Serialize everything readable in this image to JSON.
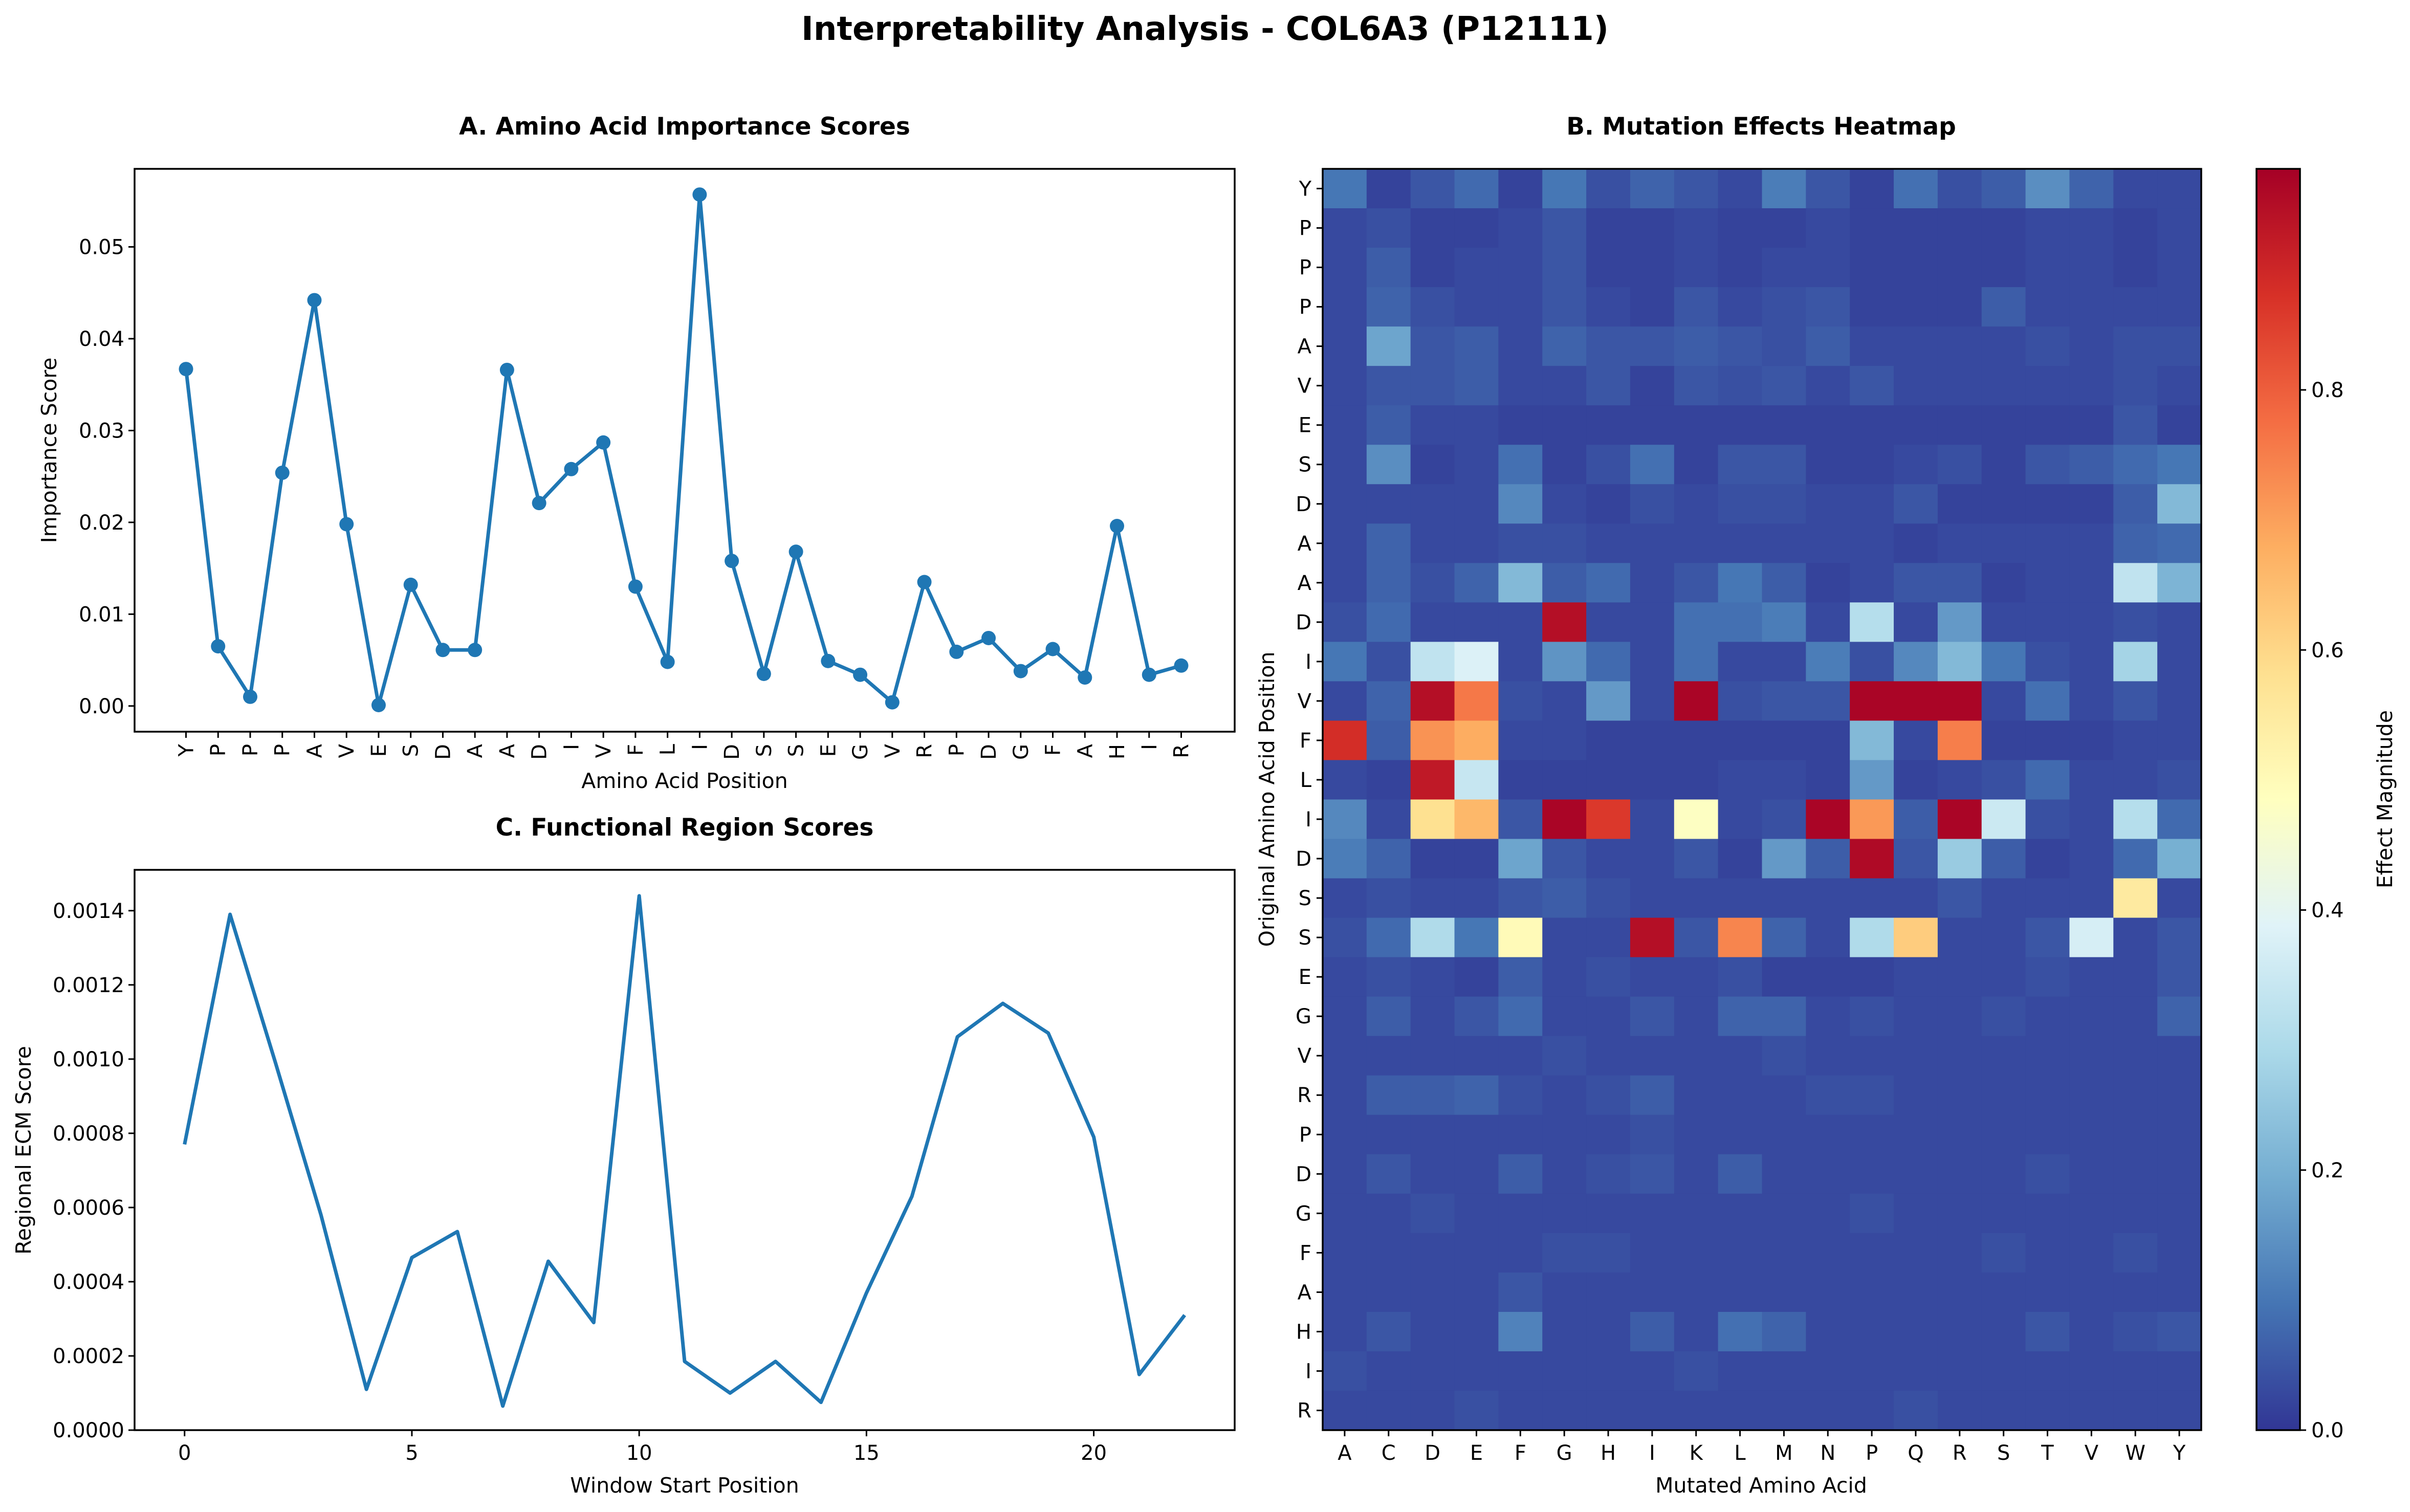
{
  "suptitle": "Interpretability Analysis - COL6A3 (P12111)",
  "chart_data": [
    {
      "panel": "A",
      "type": "line",
      "title": "A. Amino Acid Importance Scores",
      "xlabel": "Amino Acid Position",
      "ylabel": "Importance Score",
      "markers": true,
      "categories": [
        "Y",
        "P",
        "P",
        "P",
        "A",
        "V",
        "E",
        "S",
        "D",
        "A",
        "A",
        "D",
        "I",
        "V",
        "F",
        "L",
        "I",
        "D",
        "S",
        "S",
        "E",
        "G",
        "V",
        "R",
        "P",
        "D",
        "G",
        "F",
        "A",
        "H",
        "I",
        "R"
      ],
      "values": [
        0.0367,
        0.0065,
        0.001,
        0.0254,
        0.0442,
        0.0198,
        0.0001,
        0.0132,
        0.0061,
        0.0061,
        0.0366,
        0.0221,
        0.0258,
        0.0287,
        0.013,
        0.0048,
        0.0557,
        0.0158,
        0.0035,
        0.0168,
        0.0049,
        0.0034,
        0.0004,
        0.0135,
        0.0059,
        0.0074,
        0.0038,
        0.0062,
        0.0031,
        0.0196,
        0.0034,
        0.0044
      ],
      "yticks": [
        "0.00",
        "0.01",
        "0.02",
        "0.03",
        "0.04",
        "0.05"
      ],
      "ylim": [
        -0.0028,
        0.0585
      ],
      "color": "#1f77b4"
    },
    {
      "panel": "C",
      "type": "line",
      "title": "C. Functional Region Scores",
      "xlabel": "Window Start Position",
      "ylabel": "Regional ECM Score",
      "x": [
        0,
        1,
        2,
        3,
        4,
        5,
        6,
        7,
        8,
        9,
        10,
        11,
        12,
        13,
        14,
        15,
        16,
        17,
        18,
        19,
        20,
        21,
        22
      ],
      "values": [
        0.00077,
        0.00139,
        0.00099,
        0.00058,
        0.00011,
        0.000465,
        0.000535,
        6.5e-05,
        0.000455,
        0.00029,
        0.00144,
        0.000185,
        0.0001,
        0.000185,
        7.5e-05,
        0.00037,
        0.00063,
        0.00106,
        0.00115,
        0.00107,
        0.00079,
        0.00015,
        0.00031
      ],
      "xticks": [
        "0",
        "5",
        "10",
        "15",
        "20"
      ],
      "yticks": [
        "0.0000",
        "0.0002",
        "0.0004",
        "0.0006",
        "0.0008",
        "0.0010",
        "0.0012",
        "0.0014"
      ],
      "xlim": [
        -1.1,
        23.1
      ],
      "ylim": [
        0,
        0.00151
      ],
      "color": "#1f77b4"
    },
    {
      "panel": "B",
      "type": "heatmap",
      "title": "B. Mutation Effects Heatmap",
      "xlabel": "Mutated Amino Acid",
      "ylabel": "Original Amino Acid Position",
      "colorbar_label": "Effect Magnitude",
      "colorbar_ticks": [
        "0.0",
        "0.2",
        "0.4",
        "0.6",
        "0.8"
      ],
      "colormap": "RdYlBu_r",
      "vmin": 0,
      "vmax": 0.97,
      "x_labels": [
        "A",
        "C",
        "D",
        "E",
        "F",
        "G",
        "H",
        "I",
        "K",
        "L",
        "M",
        "N",
        "P",
        "Q",
        "R",
        "S",
        "T",
        "V",
        "W",
        "Y"
      ],
      "y_labels": [
        "Y",
        "P",
        "P",
        "P",
        "A",
        "V",
        "E",
        "S",
        "D",
        "A",
        "A",
        "D",
        "I",
        "V",
        "F",
        "L",
        "I",
        "D",
        "S",
        "S",
        "E",
        "G",
        "V",
        "R",
        "P",
        "D",
        "G",
        "F",
        "A",
        "H",
        "I",
        "R"
      ],
      "values": [
        [
          0.1,
          0.02,
          0.05,
          0.08,
          0.02,
          0.1,
          0.04,
          0.07,
          0.05,
          0.03,
          0.11,
          0.05,
          0.02,
          0.09,
          0.04,
          0.06,
          0.14,
          0.07,
          0.03,
          0.03
        ],
        [
          0.03,
          0.04,
          0.02,
          0.02,
          0.03,
          0.05,
          0.02,
          0.02,
          0.03,
          0.02,
          0.02,
          0.03,
          0.02,
          0.02,
          0.02,
          0.02,
          0.03,
          0.03,
          0.02,
          0.03
        ],
        [
          0.03,
          0.06,
          0.02,
          0.03,
          0.03,
          0.05,
          0.02,
          0.02,
          0.03,
          0.02,
          0.03,
          0.03,
          0.02,
          0.02,
          0.02,
          0.02,
          0.03,
          0.03,
          0.02,
          0.03
        ],
        [
          0.03,
          0.07,
          0.04,
          0.03,
          0.03,
          0.05,
          0.03,
          0.02,
          0.05,
          0.03,
          0.04,
          0.05,
          0.02,
          0.02,
          0.02,
          0.06,
          0.03,
          0.03,
          0.03,
          0.03
        ],
        [
          0.03,
          0.18,
          0.05,
          0.06,
          0.03,
          0.07,
          0.05,
          0.05,
          0.06,
          0.05,
          0.04,
          0.06,
          0.03,
          0.03,
          0.03,
          0.03,
          0.04,
          0.03,
          0.04,
          0.04
        ],
        [
          0.03,
          0.05,
          0.05,
          0.06,
          0.03,
          0.03,
          0.05,
          0.02,
          0.05,
          0.04,
          0.05,
          0.03,
          0.05,
          0.03,
          0.03,
          0.03,
          0.03,
          0.03,
          0.04,
          0.03
        ],
        [
          0.03,
          0.06,
          0.03,
          0.03,
          0.02,
          0.02,
          0.02,
          0.02,
          0.02,
          0.02,
          0.02,
          0.02,
          0.02,
          0.02,
          0.02,
          0.02,
          0.02,
          0.02,
          0.05,
          0.02
        ],
        [
          0.03,
          0.14,
          0.02,
          0.03,
          0.09,
          0.02,
          0.04,
          0.09,
          0.02,
          0.05,
          0.05,
          0.02,
          0.02,
          0.03,
          0.04,
          0.02,
          0.05,
          0.06,
          0.08,
          0.1
        ],
        [
          0.03,
          0.03,
          0.03,
          0.03,
          0.13,
          0.03,
          0.02,
          0.04,
          0.03,
          0.04,
          0.04,
          0.03,
          0.03,
          0.05,
          0.02,
          0.02,
          0.02,
          0.02,
          0.06,
          0.22
        ],
        [
          0.03,
          0.07,
          0.03,
          0.03,
          0.04,
          0.04,
          0.03,
          0.03,
          0.03,
          0.03,
          0.03,
          0.03,
          0.03,
          0.02,
          0.03,
          0.03,
          0.03,
          0.03,
          0.07,
          0.08
        ],
        [
          0.03,
          0.07,
          0.04,
          0.07,
          0.22,
          0.06,
          0.08,
          0.03,
          0.05,
          0.1,
          0.06,
          0.02,
          0.03,
          0.05,
          0.05,
          0.02,
          0.03,
          0.03,
          0.33,
          0.21
        ],
        [
          0.04,
          0.08,
          0.03,
          0.03,
          0.03,
          0.94,
          0.03,
          0.03,
          0.09,
          0.09,
          0.11,
          0.03,
          0.31,
          0.03,
          0.16,
          0.03,
          0.03,
          0.03,
          0.04,
          0.03
        ],
        [
          0.1,
          0.04,
          0.33,
          0.38,
          0.03,
          0.15,
          0.08,
          0.03,
          0.09,
          0.03,
          0.03,
          0.11,
          0.04,
          0.13,
          0.22,
          0.1,
          0.04,
          0.03,
          0.28,
          0.03
        ],
        [
          0.03,
          0.07,
          0.94,
          0.76,
          0.04,
          0.03,
          0.16,
          0.03,
          0.96,
          0.04,
          0.05,
          0.05,
          0.96,
          0.96,
          0.96,
          0.03,
          0.09,
          0.03,
          0.05,
          0.03
        ],
        [
          0.88,
          0.06,
          0.72,
          0.68,
          0.03,
          0.03,
          0.02,
          0.02,
          0.02,
          0.02,
          0.02,
          0.02,
          0.22,
          0.03,
          0.75,
          0.02,
          0.02,
          0.02,
          0.03,
          0.03
        ],
        [
          0.03,
          0.02,
          0.92,
          0.34,
          0.02,
          0.02,
          0.02,
          0.02,
          0.02,
          0.03,
          0.03,
          0.02,
          0.16,
          0.02,
          0.03,
          0.04,
          0.08,
          0.03,
          0.03,
          0.04
        ],
        [
          0.13,
          0.03,
          0.58,
          0.66,
          0.05,
          0.96,
          0.86,
          0.03,
          0.48,
          0.03,
          0.04,
          0.96,
          0.71,
          0.06,
          0.96,
          0.35,
          0.04,
          0.03,
          0.31,
          0.08
        ],
        [
          0.11,
          0.07,
          0.02,
          0.02,
          0.18,
          0.05,
          0.03,
          0.03,
          0.05,
          0.02,
          0.16,
          0.06,
          0.95,
          0.05,
          0.26,
          0.06,
          0.02,
          0.03,
          0.08,
          0.2
        ],
        [
          0.03,
          0.04,
          0.03,
          0.03,
          0.05,
          0.06,
          0.04,
          0.03,
          0.03,
          0.03,
          0.03,
          0.03,
          0.03,
          0.03,
          0.05,
          0.03,
          0.03,
          0.03,
          0.55,
          0.03
        ],
        [
          0.04,
          0.08,
          0.3,
          0.1,
          0.5,
          0.03,
          0.03,
          0.94,
          0.05,
          0.74,
          0.07,
          0.03,
          0.3,
          0.62,
          0.03,
          0.03,
          0.05,
          0.37,
          0.03,
          0.05
        ],
        [
          0.03,
          0.04,
          0.03,
          0.02,
          0.06,
          0.03,
          0.04,
          0.03,
          0.03,
          0.04,
          0.02,
          0.02,
          0.02,
          0.03,
          0.03,
          0.03,
          0.04,
          0.03,
          0.03,
          0.05
        ],
        [
          0.03,
          0.06,
          0.03,
          0.05,
          0.08,
          0.03,
          0.03,
          0.05,
          0.03,
          0.07,
          0.07,
          0.03,
          0.04,
          0.03,
          0.03,
          0.04,
          0.03,
          0.03,
          0.03,
          0.07
        ],
        [
          0.03,
          0.03,
          0.03,
          0.03,
          0.03,
          0.04,
          0.03,
          0.03,
          0.03,
          0.03,
          0.04,
          0.03,
          0.03,
          0.03,
          0.03,
          0.03,
          0.03,
          0.03,
          0.03,
          0.03
        ],
        [
          0.03,
          0.06,
          0.06,
          0.07,
          0.04,
          0.03,
          0.04,
          0.06,
          0.03,
          0.03,
          0.03,
          0.04,
          0.04,
          0.03,
          0.03,
          0.03,
          0.03,
          0.03,
          0.03,
          0.03
        ],
        [
          0.03,
          0.03,
          0.03,
          0.03,
          0.03,
          0.03,
          0.03,
          0.04,
          0.03,
          0.03,
          0.03,
          0.03,
          0.03,
          0.03,
          0.03,
          0.03,
          0.03,
          0.03,
          0.03,
          0.03
        ],
        [
          0.03,
          0.05,
          0.03,
          0.03,
          0.06,
          0.03,
          0.04,
          0.05,
          0.03,
          0.06,
          0.03,
          0.03,
          0.03,
          0.03,
          0.03,
          0.03,
          0.04,
          0.03,
          0.03,
          0.03
        ],
        [
          0.03,
          0.03,
          0.04,
          0.03,
          0.03,
          0.03,
          0.03,
          0.03,
          0.03,
          0.03,
          0.03,
          0.03,
          0.04,
          0.03,
          0.03,
          0.03,
          0.03,
          0.03,
          0.03,
          0.03
        ],
        [
          0.03,
          0.03,
          0.03,
          0.03,
          0.03,
          0.04,
          0.04,
          0.03,
          0.03,
          0.03,
          0.03,
          0.03,
          0.03,
          0.03,
          0.03,
          0.04,
          0.03,
          0.03,
          0.04,
          0.03
        ],
        [
          0.03,
          0.03,
          0.03,
          0.03,
          0.05,
          0.03,
          0.03,
          0.03,
          0.03,
          0.03,
          0.03,
          0.03,
          0.03,
          0.03,
          0.03,
          0.03,
          0.03,
          0.03,
          0.03,
          0.03
        ],
        [
          0.03,
          0.05,
          0.03,
          0.03,
          0.12,
          0.03,
          0.03,
          0.06,
          0.03,
          0.09,
          0.07,
          0.03,
          0.03,
          0.03,
          0.03,
          0.03,
          0.05,
          0.03,
          0.04,
          0.05
        ],
        [
          0.04,
          0.03,
          0.03,
          0.03,
          0.03,
          0.03,
          0.03,
          0.03,
          0.04,
          0.03,
          0.03,
          0.03,
          0.03,
          0.03,
          0.03,
          0.03,
          0.03,
          0.03,
          0.03,
          0.03
        ],
        [
          0.03,
          0.03,
          0.03,
          0.04,
          0.03,
          0.03,
          0.03,
          0.03,
          0.03,
          0.03,
          0.03,
          0.03,
          0.03,
          0.04,
          0.03,
          0.03,
          0.03,
          0.03,
          0.03,
          0.03
        ]
      ]
    }
  ]
}
